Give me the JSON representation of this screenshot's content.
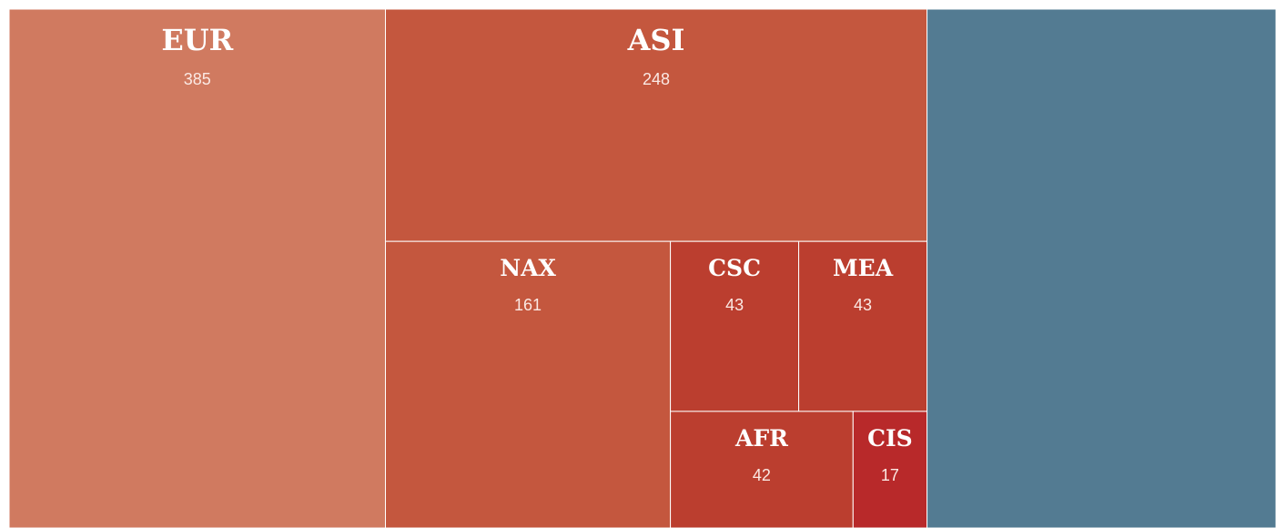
{
  "chart_data": {
    "type": "treemap",
    "categories": [
      "EUR",
      "ASI",
      "NAX",
      "CSC",
      "MEA",
      "AFR",
      "CIS",
      null
    ],
    "values": [
      385,
      248,
      161,
      43,
      43,
      42,
      17,
      357
    ],
    "colors": [
      "#d07a60",
      "#c4573e",
      "#c4573e",
      "#bb3e2f",
      "#bb3e2f",
      "#bb3e2f",
      "#b8292a",
      "#537b92"
    ]
  }
}
